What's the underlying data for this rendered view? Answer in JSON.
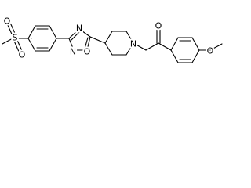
{
  "atoms": [
    "O",
    "S",
    "O",
    "N",
    "O",
    "N",
    "N",
    "O",
    "O"
  ]
}
